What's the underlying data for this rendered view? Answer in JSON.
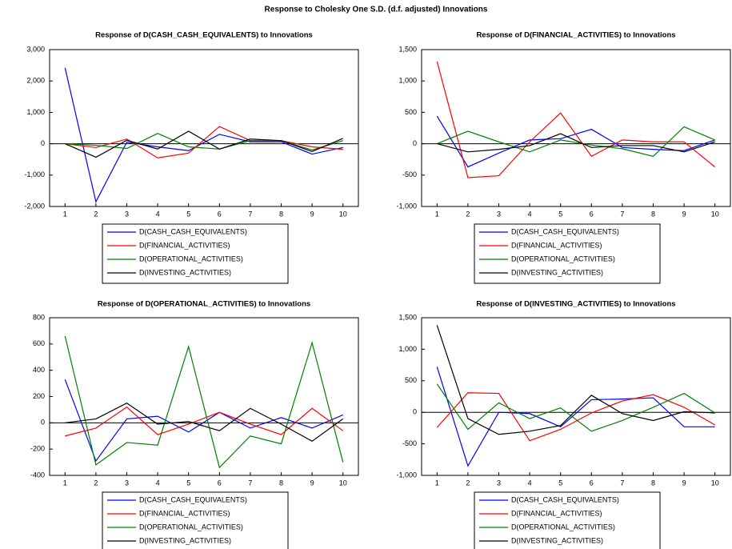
{
  "title": "Response to Cholesky One S.D. (d.f. adjusted) Innovations",
  "chart_data": [
    {
      "type": "line",
      "title": "Response of D(CASH_CASH_EQUIVALENTS) to Innovations",
      "categories": [
        "1",
        "2",
        "3",
        "4",
        "5",
        "6",
        "7",
        "8",
        "9",
        "10"
      ],
      "ylim": [
        -2000,
        3000
      ],
      "yticks": [
        {
          "value": -2000,
          "label": "-2,000"
        },
        {
          "value": -1000,
          "label": "-1,000"
        },
        0,
        {
          "value": 1000,
          "label": "1,000"
        },
        {
          "value": 2000,
          "label": "2,000"
        },
        {
          "value": 3000,
          "label": "3,000"
        }
      ],
      "legend": "bottom",
      "series": [
        {
          "name": "D(CASH_CASH_EQUIVALENTS)",
          "color": "#0000ff",
          "values": [
            2420,
            -1850,
            50,
            -100,
            -220,
            300,
            60,
            60,
            -330,
            -120
          ]
        },
        {
          "name": "D(FINANCIAL_ACTIVITIES)",
          "color": "#ff0000",
          "values": [
            0,
            -120,
            150,
            -450,
            -300,
            550,
            100,
            100,
            -100,
            -180
          ]
        },
        {
          "name": "D(OPERATIONAL_ACTIVITIES)",
          "color": "#008000",
          "values": [
            0,
            -50,
            -150,
            330,
            -100,
            -170,
            100,
            100,
            -200,
            100
          ]
        },
        {
          "name": "D(INVESTING_ACTIVITIES)",
          "color": "#000000",
          "values": [
            0,
            -430,
            110,
            -170,
            400,
            -170,
            150,
            100,
            -250,
            170
          ]
        }
      ]
    },
    {
      "type": "line",
      "title": "Response of D(FINANCIAL_ACTIVITIES) to Innovations",
      "categories": [
        "1",
        "2",
        "3",
        "4",
        "5",
        "6",
        "7",
        "8",
        "9",
        "10"
      ],
      "ylim": [
        -1000,
        1500
      ],
      "yticks": [
        {
          "value": -1000,
          "label": "-1,000"
        },
        -500,
        0,
        500,
        {
          "value": 1000,
          "label": "1,000"
        },
        {
          "value": 1500,
          "label": "1,500"
        }
      ],
      "legend": "bottom",
      "series": [
        {
          "name": "D(CASH_CASH_EQUIVALENTS)",
          "color": "#0000ff",
          "values": [
            440,
            -370,
            -150,
            60,
            80,
            230,
            -60,
            -90,
            -110,
            60
          ]
        },
        {
          "name": "D(FINANCIAL_ACTIVITIES)",
          "color": "#ff0000",
          "values": [
            1310,
            -540,
            -510,
            30,
            490,
            -200,
            60,
            30,
            30,
            -370
          ]
        },
        {
          "name": "D(OPERATIONAL_ACTIVITIES)",
          "color": "#008000",
          "values": [
            0,
            200,
            30,
            -130,
            60,
            -20,
            -80,
            -200,
            270,
            60
          ]
        },
        {
          "name": "D(INVESTING_ACTIVITIES)",
          "color": "#000000",
          "values": [
            0,
            -130,
            -90,
            -30,
            160,
            -60,
            -30,
            -30,
            -130,
            30
          ]
        }
      ]
    },
    {
      "type": "line",
      "title": "Response of D(OPERATIONAL_ACTIVITIES) to Innovations",
      "categories": [
        "1",
        "2",
        "3",
        "4",
        "5",
        "6",
        "7",
        "8",
        "9",
        "10"
      ],
      "ylim": [
        -400,
        800
      ],
      "yticks": [
        -400,
        -200,
        0,
        200,
        400,
        600,
        800
      ],
      "legend": "bottom",
      "series": [
        {
          "name": "D(CASH_CASH_EQUIVALENTS)",
          "color": "#0000ff",
          "values": [
            330,
            -290,
            30,
            50,
            -70,
            80,
            -40,
            40,
            -40,
            60
          ]
        },
        {
          "name": "D(FINANCIAL_ACTIVITIES)",
          "color": "#ff0000",
          "values": [
            -100,
            -40,
            120,
            -90,
            -10,
            80,
            -10,
            -90,
            110,
            -60
          ]
        },
        {
          "name": "D(OPERATIONAL_ACTIVITIES)",
          "color": "#008000",
          "values": [
            660,
            -320,
            -150,
            -170,
            580,
            -340,
            -100,
            -160,
            610,
            -300
          ]
        },
        {
          "name": "D(INVESTING_ACTIVITIES)",
          "color": "#000000",
          "values": [
            0,
            30,
            150,
            -10,
            10,
            -60,
            110,
            -10,
            -140,
            30
          ]
        }
      ]
    },
    {
      "type": "line",
      "title": "Response of D(INVESTING_ACTIVITIES) to Innovations",
      "categories": [
        "1",
        "2",
        "3",
        "4",
        "5",
        "6",
        "7",
        "8",
        "9",
        "10"
      ],
      "ylim": [
        -1000,
        1500
      ],
      "yticks": [
        {
          "value": -1000,
          "label": "-1,000"
        },
        -500,
        0,
        500,
        {
          "value": 1000,
          "label": "1,000"
        },
        {
          "value": 1500,
          "label": "1,500"
        }
      ],
      "legend": "bottom",
      "series": [
        {
          "name": "D(CASH_CASH_EQUIVALENTS)",
          "color": "#0000ff",
          "values": [
            720,
            -850,
            0,
            -20,
            -230,
            200,
            210,
            230,
            -230,
            -230
          ]
        },
        {
          "name": "D(FINANCIAL_ACTIVITIES)",
          "color": "#ff0000",
          "values": [
            -240,
            310,
            300,
            -450,
            -270,
            -10,
            180,
            280,
            80,
            -200
          ]
        },
        {
          "name": "D(OPERATIONAL_ACTIVITIES)",
          "color": "#008000",
          "values": [
            450,
            -270,
            150,
            -100,
            70,
            -300,
            -130,
            80,
            300,
            -10
          ]
        },
        {
          "name": "D(INVESTING_ACTIVITIES)",
          "color": "#000000",
          "values": [
            1380,
            -100,
            -350,
            -300,
            -210,
            270,
            -20,
            -130,
            10,
            -10
          ]
        }
      ]
    }
  ]
}
